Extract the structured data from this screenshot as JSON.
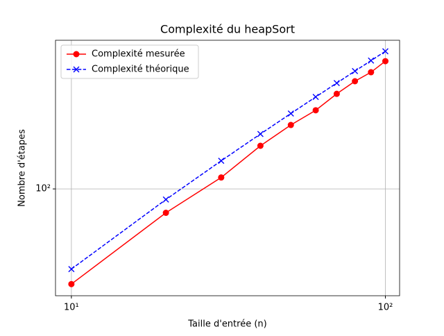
{
  "chart_data": {
    "type": "line",
    "title": "Complexité du heapSort",
    "xlabel": "Taille d'entrée (n)",
    "ylabel": "Nombre d'étapes",
    "x": [
      10,
      20,
      30,
      40,
      50,
      60,
      70,
      80,
      90,
      100
    ],
    "series": [
      {
        "name": "Complexité mesurée",
        "color": "#ff0000",
        "marker": "o",
        "linestyle": "solid",
        "values": [
          27,
          72,
          117,
          181,
          241,
          295,
          370,
          440,
          498,
          580
        ]
      },
      {
        "name": "Complexité théorique",
        "color": "#0000ff",
        "marker": "x",
        "linestyle": "dashed",
        "values": [
          33.2,
          86.4,
          147.2,
          212.9,
          282.2,
          354.4,
          429.1,
          505.8,
          584.3,
          664.4
        ]
      }
    ],
    "xscale": "log",
    "yscale": "log",
    "xlim": [
      8.9,
      111
    ],
    "ylim": [
      23,
      773
    ],
    "xticks": [
      {
        "value": 10,
        "label": "10¹"
      },
      {
        "value": 100,
        "label": "10²"
      }
    ],
    "yticks": [
      {
        "value": 100,
        "label": "10²"
      }
    ],
    "grid": true,
    "legend": "upper-left"
  }
}
